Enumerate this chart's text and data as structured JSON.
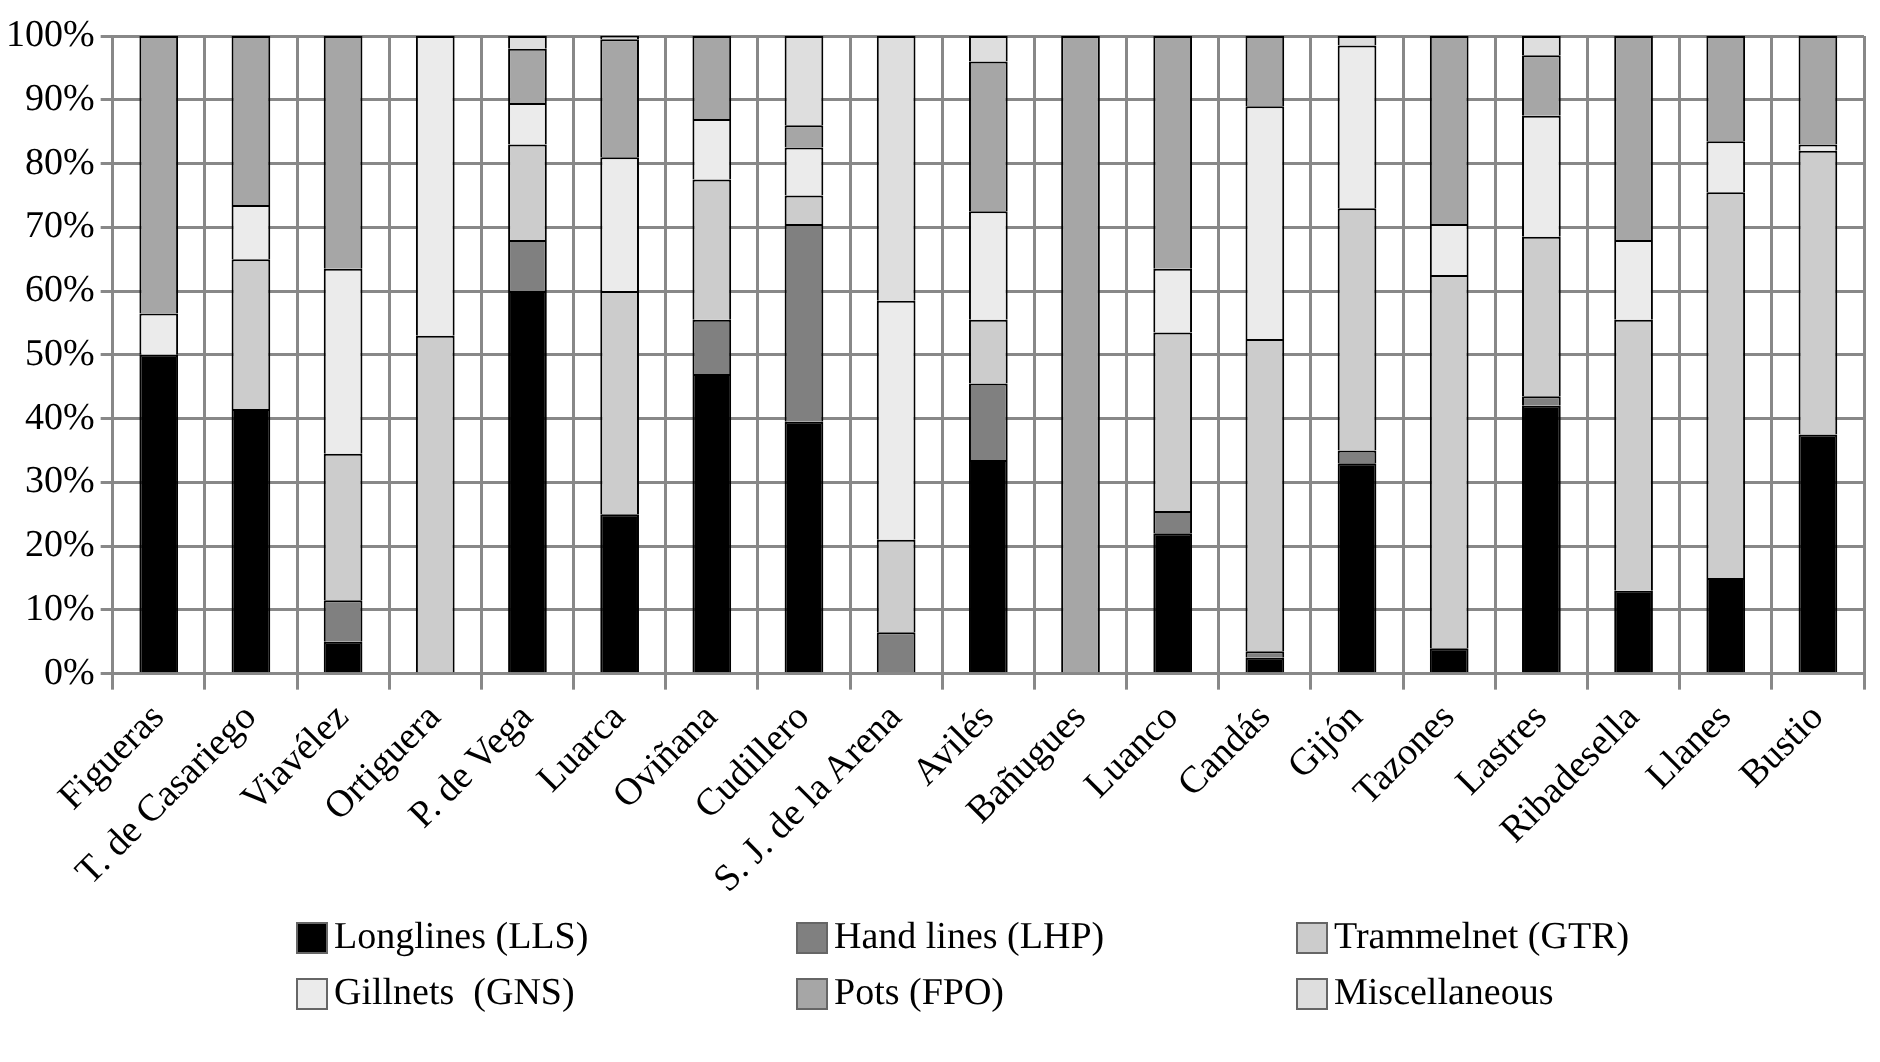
{
  "chart_data": {
    "type": "bar",
    "stacked": true,
    "categories": [
      "Figueras",
      "T. de Casariego",
      "Viavélez",
      "Ortiguera",
      "P. de Vega",
      "Luarca",
      "Oviñana",
      "Cudillero",
      "S. J. de la Arena",
      "Avilés",
      "Bañugues",
      "Luanco",
      "Candás",
      "Gijón",
      "Tazones",
      "Lastres",
      "Ribadesella",
      "Llanes",
      "Bustio"
    ],
    "series": [
      {
        "name": "Longlines (LLS)",
        "color": "#000000",
        "values": [
          50,
          41.5,
          5,
          0,
          60,
          25,
          47,
          39.5,
          0,
          33.5,
          0,
          22,
          2.5,
          33,
          4,
          42,
          13,
          15,
          37.5
        ]
      },
      {
        "name": "Hand lines (LHP)",
        "color": "#808080",
        "values": [
          0,
          0,
          6.5,
          0,
          8,
          0,
          8.5,
          31,
          6.5,
          12,
          0,
          3.5,
          1,
          2,
          0,
          1.5,
          0,
          0,
          0
        ]
      },
      {
        "name": "Trammelnet (GTR)",
        "color": "#cccccc",
        "values": [
          0,
          23.5,
          23,
          53,
          15,
          35,
          22,
          4.5,
          14.5,
          10,
          0,
          28,
          49,
          38,
          58.5,
          25,
          42.5,
          60.5,
          44.5
        ]
      },
      {
        "name": "Gillnets  (GNS)",
        "color": "#ebebeb",
        "values": [
          6.5,
          8.5,
          29,
          47,
          6.5,
          21,
          9.5,
          7.5,
          37.5,
          17,
          0,
          10,
          36.5,
          25.5,
          8,
          19,
          12.5,
          8,
          1
        ]
      },
      {
        "name": "Pots (FPO)",
        "color": "#a6a6a6",
        "values": [
          43.5,
          26.5,
          36.5,
          0,
          8.5,
          18.5,
          13,
          3.5,
          0,
          23.5,
          100,
          36.5,
          11,
          0,
          29.5,
          9.5,
          32,
          16.5,
          17
        ]
      },
      {
        "name": "Miscellaneous",
        "color": "#dedede",
        "values": [
          0,
          0,
          0,
          0,
          2,
          0.5,
          0,
          14,
          41.5,
          4,
          0,
          0,
          0,
          1.5,
          0,
          3,
          0,
          0,
          0
        ]
      }
    ],
    "ylim": [
      0,
      100
    ],
    "yticks": [
      {
        "value": 0,
        "label": "0%"
      },
      {
        "value": 10,
        "label": "10%"
      },
      {
        "value": 20,
        "label": "20%"
      },
      {
        "value": 30,
        "label": "30%"
      },
      {
        "value": 40,
        "label": "40%"
      },
      {
        "value": 50,
        "label": "50%"
      },
      {
        "value": 60,
        "label": "60%"
      },
      {
        "value": 70,
        "label": "70%"
      },
      {
        "value": 80,
        "label": "80%"
      },
      {
        "value": 90,
        "label": "90%"
      },
      {
        "value": 100,
        "label": "100%"
      }
    ],
    "grid": true,
    "legend": "bottom"
  }
}
